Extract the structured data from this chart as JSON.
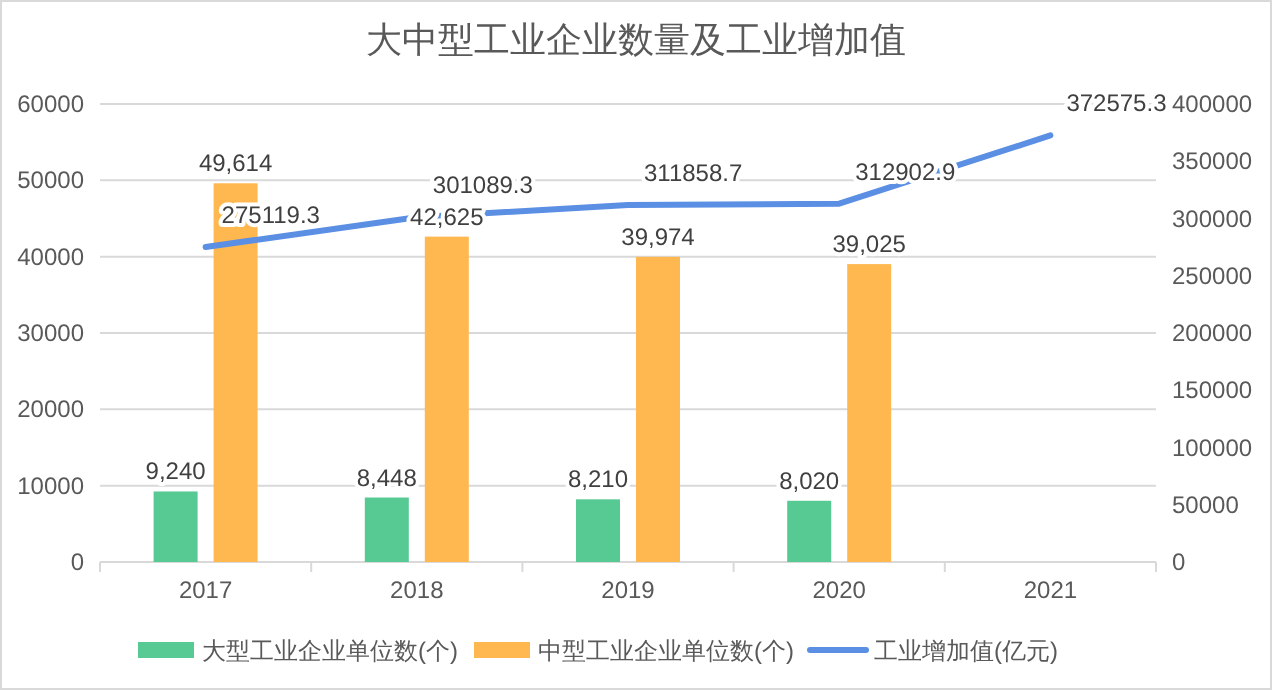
{
  "chart_data": {
    "type": "bar",
    "title": "大中型工业企业数量及工业增加值",
    "categories": [
      "2017",
      "2018",
      "2019",
      "2020",
      "2021"
    ],
    "series": [
      {
        "name": "大型工业企业单位数(个)",
        "color": "#57c993",
        "values": [
          9240,
          8448,
          8210,
          8020,
          null
        ],
        "value_labels": [
          "9,240",
          "8,448",
          "8,210",
          "8,020",
          null
        ]
      },
      {
        "name": "中型工业企业单位数(个)",
        "color": "#ffb84f",
        "values": [
          49614,
          42625,
          39974,
          39025,
          null
        ],
        "value_labels": [
          "49,614",
          "42,625",
          "39,974",
          "39,025",
          null
        ]
      },
      {
        "name": "工业增加值(亿元)",
        "type": "line",
        "axis": "y2",
        "color": "#5b8fe3",
        "values": [
          275119.3,
          301089.3,
          311858.7,
          312902.9,
          372575.3
        ],
        "value_labels": [
          "275119.3",
          "301089.3",
          "311858.7",
          "312902.9",
          "372575.3"
        ]
      }
    ],
    "ylim": [
      0,
      60000
    ],
    "yticks": [
      0,
      10000,
      20000,
      30000,
      40000,
      50000,
      60000
    ],
    "y2lim": [
      0,
      400000
    ],
    "y2ticks": [
      0,
      50000,
      100000,
      150000,
      200000,
      250000,
      300000,
      350000,
      400000
    ],
    "grid": "y",
    "legend": "bottom"
  }
}
